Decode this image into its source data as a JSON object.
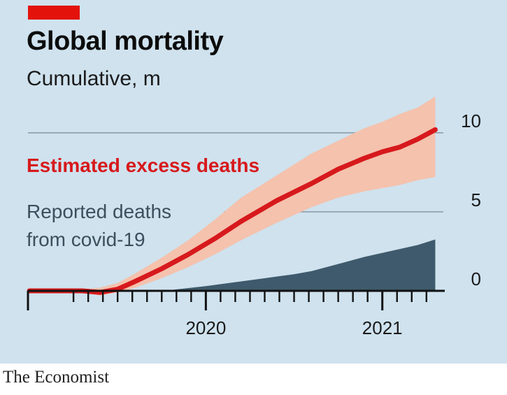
{
  "chart_data": {
    "type": "area",
    "title": "Global mortality",
    "subtitle": "Cumulative, m",
    "x_ticks": [
      "2020",
      "2021"
    ],
    "y_ticks": [
      0,
      5,
      10
    ],
    "ylim": [
      -0.7,
      12.5
    ],
    "x_range": [
      2019.0,
      2021.33
    ],
    "series": [
      {
        "name": "Estimated excess deaths",
        "kind": "line-with-band",
        "color": "#d7191c",
        "band_color": "#f4c2ad",
        "x": [
          2019.0,
          2019.2,
          2019.3,
          2019.4,
          2019.5,
          2019.6,
          2019.75,
          2019.9,
          2020.05,
          2020.2,
          2020.4,
          2020.6,
          2020.75,
          2020.9,
          2021.0,
          2021.1,
          2021.2,
          2021.3
        ],
        "values": [
          0.0,
          0.0,
          0.0,
          -0.1,
          0.1,
          0.6,
          1.4,
          2.3,
          3.3,
          4.4,
          5.7,
          6.8,
          7.7,
          8.4,
          8.8,
          9.1,
          9.6,
          10.2
        ],
        "lower": [
          0.0,
          0.0,
          -0.1,
          -0.3,
          -0.1,
          0.2,
          0.8,
          1.5,
          2.3,
          3.2,
          4.3,
          5.3,
          5.9,
          6.3,
          6.5,
          6.7,
          7.0,
          7.2
        ],
        "upper": [
          0.0,
          0.1,
          0.1,
          0.2,
          0.5,
          1.1,
          2.1,
          3.2,
          4.5,
          5.9,
          7.3,
          8.7,
          9.5,
          10.3,
          10.7,
          11.2,
          11.6,
          12.3
        ]
      },
      {
        "name": "Reported deaths from covid-19",
        "kind": "area",
        "color": "#3f5a6c",
        "x": [
          2019.0,
          2019.7,
          2019.8,
          2020.0,
          2020.2,
          2020.4,
          2020.5,
          2020.6,
          2020.7,
          2020.8,
          2020.9,
          2021.0,
          2021.1,
          2021.2,
          2021.3
        ],
        "values": [
          0.0,
          0.0,
          0.05,
          0.3,
          0.6,
          0.9,
          1.05,
          1.25,
          1.55,
          1.85,
          2.15,
          2.4,
          2.65,
          2.9,
          3.25
        ]
      }
    ],
    "annotations": {
      "excess_label": "Estimated excess deaths",
      "reported_line1": "Reported deaths",
      "reported_line2": "from covid-19"
    },
    "legend": "inline-annotations"
  },
  "source": "The Economist",
  "colors": {
    "background": "#cfe2ee",
    "brand_red": "#e3120b",
    "excess_line": "#d7191c",
    "band": "#f4c2ad",
    "reported_area": "#3f5a6c",
    "gridline": "#8a98a2",
    "axis": "#111111"
  }
}
